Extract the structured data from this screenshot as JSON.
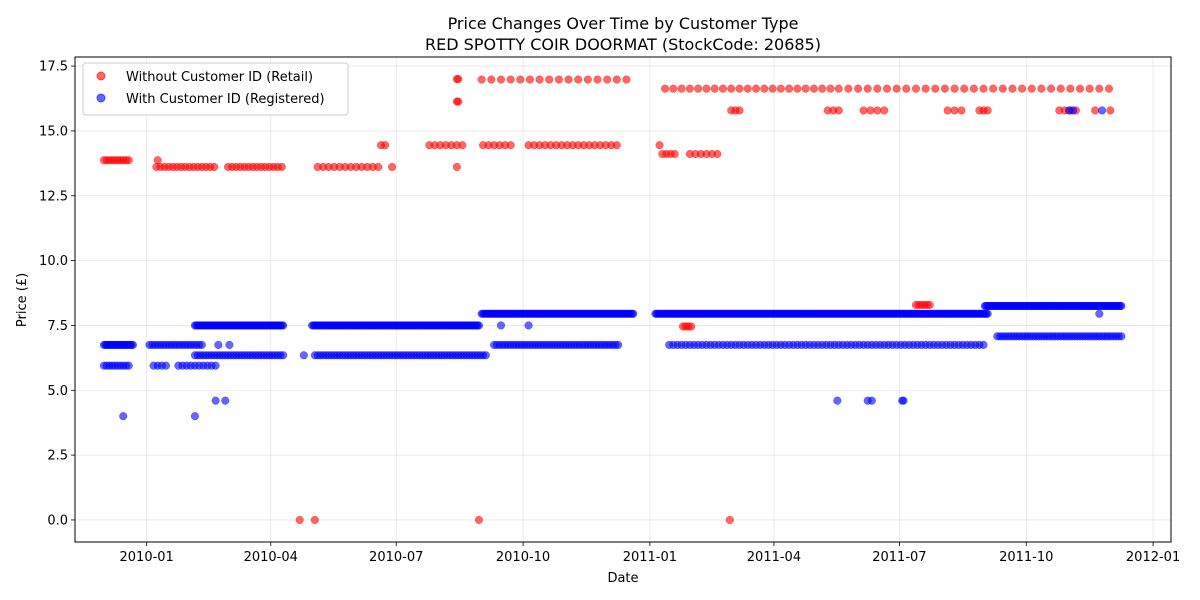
{
  "chart_data": {
    "type": "scatter",
    "title": "Price Changes Over Time by Customer Type",
    "subtitle": "RED SPOTTY COIR DOORMAT (StockCode: 20685)",
    "xlabel": "Date",
    "ylabel": "Price (£)",
    "xlim": [
      "2009-11-10",
      "2012-01-14"
    ],
    "ylim": [
      -0.85,
      17.85
    ],
    "x_ticks": [
      "2010-01-01",
      "2010-04-01",
      "2010-07-01",
      "2010-10-01",
      "2011-01-01",
      "2011-04-01",
      "2011-07-01",
      "2011-10-01",
      "2012-01-01"
    ],
    "x_tick_labels": [
      "2010-01",
      "2010-04",
      "2010-07",
      "2010-10",
      "2011-01",
      "2011-04",
      "2011-07",
      "2011-10",
      "2012-01"
    ],
    "y_ticks": [
      0.0,
      2.5,
      5.0,
      7.5,
      10.0,
      12.5,
      15.0,
      17.5
    ],
    "y_tick_labels": [
      "0.0",
      "2.5",
      "5.0",
      "7.5",
      "10.0",
      "12.5",
      "15.0",
      "17.5"
    ],
    "grid": true,
    "legend_position": "top-left",
    "series": [
      {
        "name": "Without Customer ID (Retail)",
        "color": "#ff0000",
        "segments": [
          {
            "from": "2009-12-01",
            "to": "2009-12-20",
            "step": 2,
            "y": 13.87
          },
          {
            "from": "2010-01-08",
            "to": "2010-02-20",
            "step": 3,
            "y": 13.61
          },
          {
            "from": "2010-03-01",
            "to": "2010-04-10",
            "step": 3,
            "y": 13.61
          },
          {
            "from": "2010-05-05",
            "to": "2010-06-20",
            "step": 4,
            "y": 13.61
          },
          {
            "from": "2010-06-20",
            "to": "2010-06-25",
            "step": 3,
            "y": 14.45
          },
          {
            "from": "2010-07-25",
            "to": "2010-08-20",
            "step": 4,
            "y": 14.45
          },
          {
            "from": "2010-09-02",
            "to": "2010-09-25",
            "step": 4,
            "y": 14.45
          },
          {
            "from": "2010-10-05",
            "to": "2010-12-08",
            "step": 4,
            "y": 14.45
          },
          {
            "from": "2010-09-01",
            "to": "2010-12-20",
            "step": 7,
            "y": 16.98
          },
          {
            "from": "2011-01-10",
            "to": "2011-01-20",
            "step": 3,
            "y": 14.11
          },
          {
            "from": "2011-01-30",
            "to": "2011-02-20",
            "step": 4,
            "y": 14.11
          },
          {
            "from": "2011-01-12",
            "to": "2011-05-20",
            "step": 6,
            "y": 16.63
          },
          {
            "from": "2011-05-25",
            "to": "2011-12-06",
            "step": 7,
            "y": 16.63
          },
          {
            "from": "2011-03-01",
            "to": "2011-03-08",
            "step": 3,
            "y": 15.79
          },
          {
            "from": "2011-05-10",
            "to": "2011-05-18",
            "step": 4,
            "y": 15.79
          },
          {
            "from": "2011-06-05",
            "to": "2011-06-20",
            "step": 5,
            "y": 15.79
          },
          {
            "from": "2011-08-05",
            "to": "2011-08-15",
            "step": 5,
            "y": 15.79
          },
          {
            "from": "2011-08-28",
            "to": "2011-09-03",
            "step": 3,
            "y": 15.79
          },
          {
            "from": "2011-10-25",
            "to": "2011-11-08",
            "step": 4,
            "y": 15.79
          },
          {
            "from": "2011-07-13",
            "to": "2011-07-24",
            "step": 2,
            "y": 8.29
          },
          {
            "from": "2011-01-25",
            "to": "2011-02-01",
            "step": 2,
            "y": 7.46
          }
        ],
        "points": [
          {
            "x": "2010-01-09",
            "y": 13.87
          },
          {
            "x": "2010-08-14",
            "y": 16.13
          },
          {
            "x": "2010-08-15",
            "y": 16.13
          },
          {
            "x": "2010-08-14",
            "y": 17.0
          },
          {
            "x": "2010-08-15",
            "y": 17.0
          },
          {
            "x": "2010-08-14",
            "y": 13.61
          },
          {
            "x": "2010-06-28",
            "y": 13.61
          },
          {
            "x": "2011-01-08",
            "y": 14.45
          },
          {
            "x": "2011-11-20",
            "y": 15.79
          },
          {
            "x": "2011-12-01",
            "y": 15.79
          },
          {
            "x": "2010-04-22",
            "y": 0.0
          },
          {
            "x": "2010-05-03",
            "y": 0.0
          },
          {
            "x": "2010-08-30",
            "y": 0.0
          },
          {
            "x": "2011-02-28",
            "y": 0.0
          }
        ]
      },
      {
        "name": "With Customer ID (Registered)",
        "color": "#0000ff",
        "segments": [
          {
            "from": "2009-12-01",
            "to": "2009-12-22",
            "step": 1,
            "y": 6.75
          },
          {
            "from": "2009-12-01",
            "to": "2009-12-20",
            "step": 2,
            "y": 5.95
          },
          {
            "from": "2010-01-03",
            "to": "2010-02-10",
            "step": 2,
            "y": 6.75
          },
          {
            "from": "2010-01-06",
            "to": "2010-01-15",
            "step": 3,
            "y": 5.95
          },
          {
            "from": "2010-01-24",
            "to": "2010-02-20",
            "step": 3,
            "y": 5.95
          },
          {
            "from": "2010-02-05",
            "to": "2010-04-10",
            "step": 1,
            "y": 7.5
          },
          {
            "from": "2010-02-05",
            "to": "2010-04-10",
            "step": 2,
            "y": 6.35
          },
          {
            "from": "2010-05-01",
            "to": "2010-08-30",
            "step": 1,
            "y": 7.5
          },
          {
            "from": "2010-05-03",
            "to": "2010-09-05",
            "step": 2,
            "y": 6.35
          },
          {
            "from": "2010-09-01",
            "to": "2010-12-20",
            "step": 1,
            "y": 7.95
          },
          {
            "from": "2010-09-10",
            "to": "2010-12-10",
            "step": 2,
            "y": 6.75
          },
          {
            "from": "2011-01-05",
            "to": "2011-09-03",
            "step": 1,
            "y": 7.95
          },
          {
            "from": "2011-01-15",
            "to": "2011-09-01",
            "step": 3,
            "y": 6.75
          },
          {
            "from": "2011-09-01",
            "to": "2011-12-09",
            "step": 1,
            "y": 8.25
          },
          {
            "from": "2011-09-10",
            "to": "2011-12-09",
            "step": 2,
            "y": 7.08
          }
        ],
        "points": [
          {
            "x": "2009-12-15",
            "y": 4.0
          },
          {
            "x": "2010-02-05",
            "y": 4.0
          },
          {
            "x": "2010-02-20",
            "y": 4.6
          },
          {
            "x": "2010-02-27",
            "y": 4.6
          },
          {
            "x": "2010-02-22",
            "y": 6.75
          },
          {
            "x": "2010-03-02",
            "y": 6.75
          },
          {
            "x": "2010-04-25",
            "y": 6.35
          },
          {
            "x": "2010-09-15",
            "y": 7.5
          },
          {
            "x": "2010-10-05",
            "y": 7.5
          },
          {
            "x": "2011-05-17",
            "y": 4.6
          },
          {
            "x": "2011-06-08",
            "y": 4.6
          },
          {
            "x": "2011-06-11",
            "y": 4.6
          },
          {
            "x": "2011-07-03",
            "y": 4.6
          },
          {
            "x": "2011-07-04",
            "y": 4.6
          },
          {
            "x": "2011-11-01",
            "y": 15.79
          },
          {
            "x": "2011-11-04",
            "y": 15.79
          },
          {
            "x": "2011-11-25",
            "y": 15.79
          },
          {
            "x": "2011-11-23",
            "y": 7.95
          }
        ]
      }
    ]
  }
}
